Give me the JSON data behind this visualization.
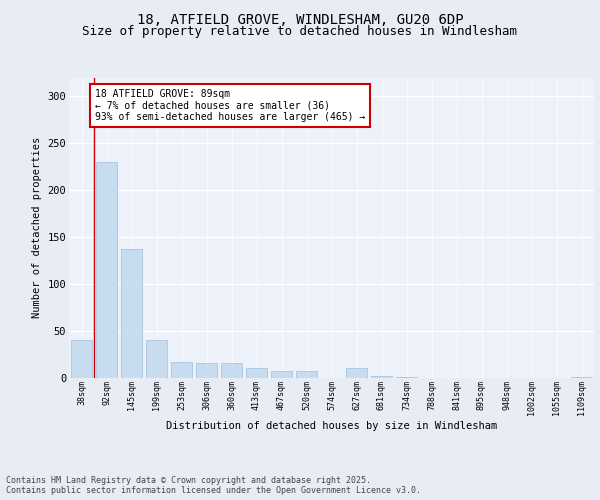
{
  "title1": "18, ATFIELD GROVE, WINDLESHAM, GU20 6DP",
  "title2": "Size of property relative to detached houses in Windlesham",
  "xlabel": "Distribution of detached houses by size in Windlesham",
  "ylabel": "Number of detached properties",
  "categories": [
    "38sqm",
    "92sqm",
    "145sqm",
    "199sqm",
    "253sqm",
    "306sqm",
    "360sqm",
    "413sqm",
    "467sqm",
    "520sqm",
    "574sqm",
    "627sqm",
    "681sqm",
    "734sqm",
    "788sqm",
    "841sqm",
    "895sqm",
    "948sqm",
    "1002sqm",
    "1055sqm",
    "1109sqm"
  ],
  "values": [
    40,
    230,
    137,
    40,
    17,
    16,
    16,
    10,
    7,
    7,
    0,
    10,
    2,
    1,
    0,
    0,
    0,
    0,
    0,
    0,
    1
  ],
  "bar_color": "#c8dcf0",
  "bar_edge_color": "#a0bedd",
  "annotation_box_color": "#cc0000",
  "annotation_text": "18 ATFIELD GROVE: 89sqm\n← 7% of detached houses are smaller (36)\n93% of semi-detached houses are larger (465) →",
  "ylim": [
    0,
    320
  ],
  "yticks": [
    0,
    50,
    100,
    150,
    200,
    250,
    300
  ],
  "footer": "Contains HM Land Registry data © Crown copyright and database right 2025.\nContains public sector information licensed under the Open Government Licence v3.0.",
  "bg_color": "#e8edf5",
  "plot_bg_color": "#edf2fa",
  "grid_color": "#ffffff",
  "title1_fontsize": 10,
  "title2_fontsize": 9
}
